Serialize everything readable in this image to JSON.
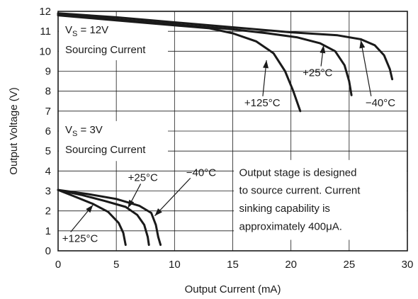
{
  "chart_data": {
    "type": "line",
    "title": "",
    "xlabel": "Output Current (mA)",
    "ylabel": "Output Voltage (V)",
    "xlim": [
      0,
      30
    ],
    "ylim": [
      0,
      12
    ],
    "xticks": [
      "0",
      "5",
      "10",
      "15",
      "20",
      "25",
      "30"
    ],
    "yticks": [
      "0",
      "1",
      "2",
      "3",
      "4",
      "5",
      "6",
      "7",
      "8",
      "9",
      "10",
      "11",
      "12"
    ],
    "grid": true,
    "line_color": "#1a1a1a",
    "groups": [
      {
        "condition_label": "V",
        "condition_subscript": "S",
        "condition_value": " = 12V",
        "mode_label": "Sourcing Current",
        "series": [
          {
            "name": "+125°C",
            "x": [
              0,
              5,
              10,
              13,
              15,
              17,
              18.5,
              19.5,
              20.2,
              20.8
            ],
            "y": [
              11.8,
              11.55,
              11.3,
              11.15,
              10.9,
              10.5,
              9.9,
              9.0,
              8.0,
              7.0
            ]
          },
          {
            "name": "+25°C",
            "x": [
              0,
              5,
              10,
              15,
              18,
              20.5,
              22.5,
              23.8,
              24.6,
              25.0,
              25.2
            ],
            "y": [
              11.85,
              11.6,
              11.35,
              11.1,
              10.9,
              10.7,
              10.4,
              10.0,
              9.3,
              8.5,
              7.8
            ]
          },
          {
            "name": "−40°C",
            "x": [
              0,
              5,
              10,
              15,
              20,
              24,
              26,
              27.2,
              28,
              28.5,
              28.7
            ],
            "y": [
              11.9,
              11.7,
              11.45,
              11.2,
              10.95,
              10.8,
              10.6,
              10.3,
              9.8,
              9.1,
              8.6
            ]
          }
        ]
      },
      {
        "condition_label": "V",
        "condition_subscript": "S",
        "condition_value": " = 3V",
        "mode_label": "Sourcing Current",
        "series": [
          {
            "name": "+125°C",
            "x": [
              0,
              1.5,
              3,
              4.3,
              5.2,
              5.6,
              5.8
            ],
            "y": [
              3.05,
              2.7,
              2.35,
              1.95,
              1.4,
              0.9,
              0.3
            ]
          },
          {
            "name": "+25°C",
            "x": [
              0,
              2,
              4,
              5.8,
              6.8,
              7.4,
              7.7,
              7.8
            ],
            "y": [
              3.05,
              2.8,
              2.5,
              2.2,
              1.8,
              1.3,
              0.7,
              0.3
            ]
          },
          {
            "name": "−40°C",
            "x": [
              0,
              2.5,
              5,
              7,
              8.0,
              8.4,
              8.6,
              8.8
            ],
            "y": [
              3.05,
              2.85,
              2.6,
              2.25,
              1.9,
              1.3,
              0.7,
              0.3
            ]
          }
        ]
      }
    ],
    "annotations": [
      {
        "id": "hi-125",
        "text": "+125°C",
        "tx": 16.0,
        "ty": 7.25,
        "ax": 17.9,
        "ay": 9.55
      },
      {
        "id": "hi-25",
        "text": "+25°C",
        "tx": 21.0,
        "ty": 8.75,
        "ax": 22.8,
        "ay": 10.3
      },
      {
        "id": "hi-m40",
        "text": "−40°C",
        "tx": 26.4,
        "ty": 7.25,
        "ax": 26.0,
        "ay": 10.55
      },
      {
        "id": "lo-125",
        "text": "+125°C",
        "tx": 0.35,
        "ty": 0.45,
        "ax": 3.0,
        "ay": 2.3
      },
      {
        "id": "lo-25",
        "text": "+25°C",
        "tx": 6.0,
        "ty": 3.5,
        "ax": 6.0,
        "ay": 2.15
      },
      {
        "id": "lo-m40",
        "text": "−40°C",
        "tx": 11.0,
        "ty": 3.75,
        "ax": 8.3,
        "ay": 1.75
      }
    ],
    "note_lines": [
      "Output stage is designed",
      "to source current. Current",
      "sinking capability is",
      "approximately 400μA."
    ]
  }
}
